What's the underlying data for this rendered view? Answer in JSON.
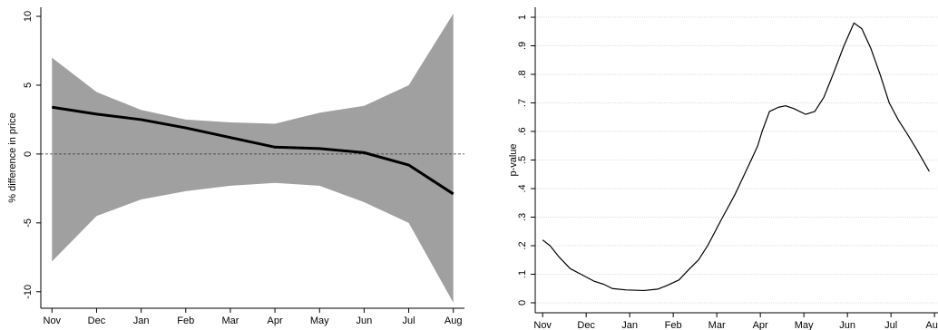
{
  "chart_data": [
    {
      "type": "line",
      "ylabel": "% difference in price",
      "x": [
        0,
        1,
        2,
        3,
        4,
        5,
        6,
        7,
        8,
        9
      ],
      "band": {
        "color": "#a0a0a0",
        "upper": [
          7,
          4.5,
          3.2,
          2.5,
          2.3,
          2.2,
          3,
          3.5,
          5,
          10.2
        ],
        "lower": [
          -7.8,
          -4.5,
          -3.3,
          -2.7,
          -2.3,
          -2.1,
          -2.3,
          -3.5,
          -5,
          -10.8
        ]
      },
      "series": [
        {
          "color": "#000000",
          "values": [
            3.4,
            2.9,
            2.5,
            1.9,
            1.2,
            0.5,
            0.4,
            0.1,
            -0.8,
            -2.9
          ]
        }
      ],
      "hline": 0,
      "xlim": [
        -0.25,
        9.25
      ],
      "ylim": [
        -11.2,
        10.66
      ],
      "xticks": [
        {
          "value": 0,
          "label": "Nov"
        },
        {
          "value": 1,
          "label": "Dec"
        },
        {
          "value": 2,
          "label": "Jan"
        },
        {
          "value": 3,
          "label": "Feb"
        },
        {
          "value": 4,
          "label": "Mar"
        },
        {
          "value": 5,
          "label": "Apr"
        },
        {
          "value": 6,
          "label": "May"
        },
        {
          "value": 7,
          "label": "Jun"
        },
        {
          "value": 8,
          "label": "Jul"
        },
        {
          "value": 9,
          "label": "Aug"
        }
      ],
      "yticks": [
        -10,
        -5,
        0,
        5,
        10
      ],
      "grid": false
    },
    {
      "type": "line",
      "ylabel": "p-value",
      "x": [
        0,
        0.17,
        0.38,
        0.63,
        0.88,
        1.19,
        1.4,
        1.6,
        1.92,
        2.33,
        2.65,
        2.85,
        3.13,
        3.38,
        3.58,
        3.79,
        4.1,
        4.42,
        4.79,
        4.94,
        5.04,
        5.21,
        5.42,
        5.58,
        5.77,
        6.04,
        6.25,
        6.46,
        6.67,
        6.92,
        7.15,
        7.33,
        7.54,
        7.75,
        7.96,
        8.17,
        8.38,
        8.58,
        8.88
      ],
      "series": [
        {
          "color": "#000000",
          "values": [
            0.22,
            0.2,
            0.16,
            0.12,
            0.1,
            0.075,
            0.065,
            0.05,
            0.045,
            0.043,
            0.048,
            0.06,
            0.08,
            0.12,
            0.15,
            0.2,
            0.29,
            0.38,
            0.5,
            0.55,
            0.6,
            0.67,
            0.685,
            0.69,
            0.68,
            0.66,
            0.67,
            0.72,
            0.8,
            0.9,
            0.98,
            0.96,
            0.89,
            0.8,
            0.7,
            0.64,
            0.59,
            0.54,
            0.46
          ]
        }
      ],
      "xlim": [
        -0.17,
        9.08
      ],
      "ylim": [
        -0.035,
        1.035
      ],
      "xticks": [
        {
          "value": 0,
          "label": "Nov"
        },
        {
          "value": 1,
          "label": "Dec"
        },
        {
          "value": 2,
          "label": "Jan"
        },
        {
          "value": 3,
          "label": "Feb"
        },
        {
          "value": 4,
          "label": "Mar"
        },
        {
          "value": 5,
          "label": "Apr"
        },
        {
          "value": 6,
          "label": "May"
        },
        {
          "value": 7,
          "label": "Jun"
        },
        {
          "value": 8,
          "label": "Jul"
        },
        {
          "value": 9,
          "label": "Aug"
        }
      ],
      "yticks": [
        0,
        {
          "value": 0.1,
          "label": ".1"
        },
        {
          "value": 0.2,
          "label": ".2"
        },
        {
          "value": 0.3,
          "label": ".3"
        },
        {
          "value": 0.4,
          "label": ".4"
        },
        {
          "value": 0.5,
          "label": ".5"
        },
        {
          "value": 0.6,
          "label": ".6"
        },
        {
          "value": 0.7,
          "label": ".7"
        },
        {
          "value": 0.8,
          "label": ".8"
        },
        {
          "value": 0.9,
          "label": ".9"
        },
        1
      ],
      "grid": true
    }
  ]
}
